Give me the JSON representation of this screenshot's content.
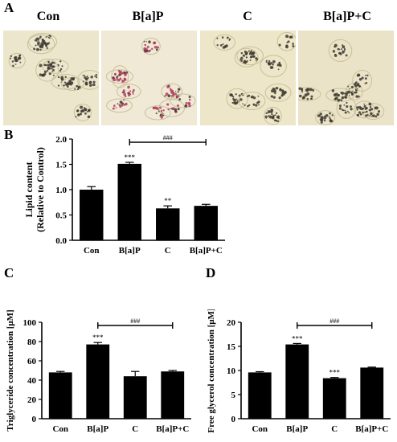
{
  "panels": {
    "A": "A",
    "B": "B",
    "C": "C",
    "D": "D"
  },
  "micrographs": [
    {
      "label": "Con",
      "tint": "#ece6cc",
      "spot": "#3a3a30",
      "red": false
    },
    {
      "label": "B[a]P",
      "tint": "#efe9d6",
      "spot": "#b23a5a",
      "red": true
    },
    {
      "label": "C",
      "tint": "#eee6c8",
      "spot": "#4a4030",
      "red": false
    },
    {
      "label": "B[a]P+C",
      "tint": "#ebe3c7",
      "spot": "#3a3628",
      "red": false
    }
  ],
  "chart_data": [
    {
      "type": "bar",
      "categories": [
        "Con",
        "B[a]P",
        "C",
        "B[a]P+C"
      ],
      "values": [
        1.0,
        1.51,
        0.63,
        0.68
      ],
      "errors": [
        0.06,
        0.03,
        0.05,
        0.03
      ],
      "annotations": [
        "",
        "***",
        "**",
        ""
      ],
      "bracket": {
        "from": 1,
        "to": 3,
        "label": "###"
      },
      "ylabel_lines": [
        "Lipid content",
        "(Relative to Control)"
      ],
      "ylim": [
        0.0,
        2.0
      ],
      "yticks": [
        "0.0",
        "0.5",
        "1.0",
        "1.5",
        "2.0"
      ],
      "ytick_values": [
        0.0,
        0.5,
        1.0,
        1.5,
        2.0
      ]
    },
    {
      "type": "bar",
      "categories": [
        "Con",
        "B[a]P",
        "C",
        "B[a]P+C"
      ],
      "values": [
        48,
        77,
        44,
        49
      ],
      "errors": [
        1,
        2,
        5,
        1
      ],
      "annotations": [
        "",
        "***",
        "",
        ""
      ],
      "bracket": {
        "from": 1,
        "to": 3,
        "label": "###"
      },
      "ylabel_lines": [
        "Triglyceride concentration [μM]"
      ],
      "ylim": [
        0,
        100
      ],
      "yticks": [
        "0",
        "20",
        "40",
        "60",
        "80",
        "100"
      ],
      "ytick_values": [
        0,
        20,
        40,
        60,
        80,
        100
      ]
    },
    {
      "type": "bar",
      "categories": [
        "Con",
        "B[a]P",
        "C",
        "B[a]P+C"
      ],
      "values": [
        9.6,
        15.4,
        8.4,
        10.6
      ],
      "errors": [
        0.15,
        0.2,
        0.15,
        0.1
      ],
      "annotations": [
        "",
        "***",
        "***",
        ""
      ],
      "bracket": {
        "from": 1,
        "to": 3,
        "label": "###"
      },
      "ylabel_lines": [
        "Free glycerol concentration [μM]"
      ],
      "ylim": [
        0,
        20
      ],
      "yticks": [
        "0",
        "5",
        "10",
        "15",
        "20"
      ],
      "ytick_values": [
        0,
        5,
        10,
        15,
        20
      ]
    }
  ]
}
